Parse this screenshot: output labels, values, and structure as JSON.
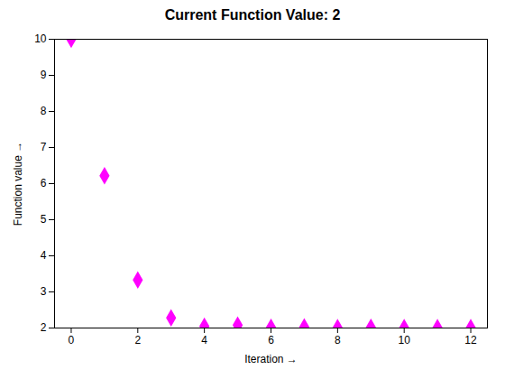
{
  "chart_data": {
    "type": "scatter",
    "title": "Current Function Value: 2",
    "xlabel": "Iteration",
    "ylabel": "Function value",
    "x": [
      0,
      1,
      2,
      3,
      4,
      5,
      6,
      7,
      8,
      9,
      10,
      11,
      12
    ],
    "y": [
      10,
      6.22,
      3.33,
      2.28,
      2.05,
      2.08,
      2.02,
      2.03,
      2.01,
      2.02,
      2.01,
      2.01,
      2.01
    ],
    "color": "#ff00ff",
    "marker": "diamond",
    "xlim": [
      -0.5,
      12.5
    ],
    "xticks": [
      0,
      2,
      4,
      6,
      8,
      10,
      12
    ],
    "ylim": [
      2,
      10
    ],
    "yticks": [
      2,
      3,
      4,
      5,
      6,
      7,
      8,
      9,
      10
    ],
    "grid": false
  }
}
